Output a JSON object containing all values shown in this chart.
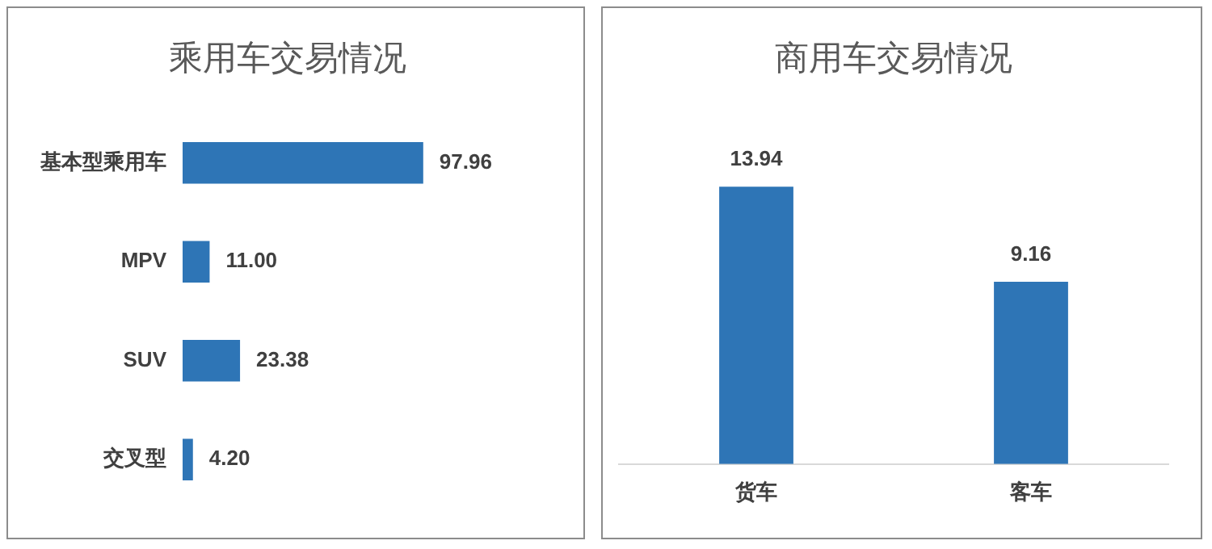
{
  "chart_data": [
    {
      "type": "bar",
      "title": "乘用车交易情况",
      "orientation": "horizontal",
      "categories": [
        "基本型乘用车",
        "MPV",
        "SUV",
        "交叉型"
      ],
      "values": [
        97.96,
        11.0,
        23.38,
        4.2
      ],
      "color": "#2e75b6",
      "value_labels": [
        "97.96",
        "11.00",
        "23.38",
        "4.20"
      ]
    },
    {
      "type": "bar",
      "title": "商用车交易情况",
      "categories": [
        "货车",
        "客车"
      ],
      "values": [
        13.94,
        9.16
      ],
      "color": "#2e75b6",
      "value_labels": [
        "13.94",
        "9.16"
      ]
    }
  ]
}
